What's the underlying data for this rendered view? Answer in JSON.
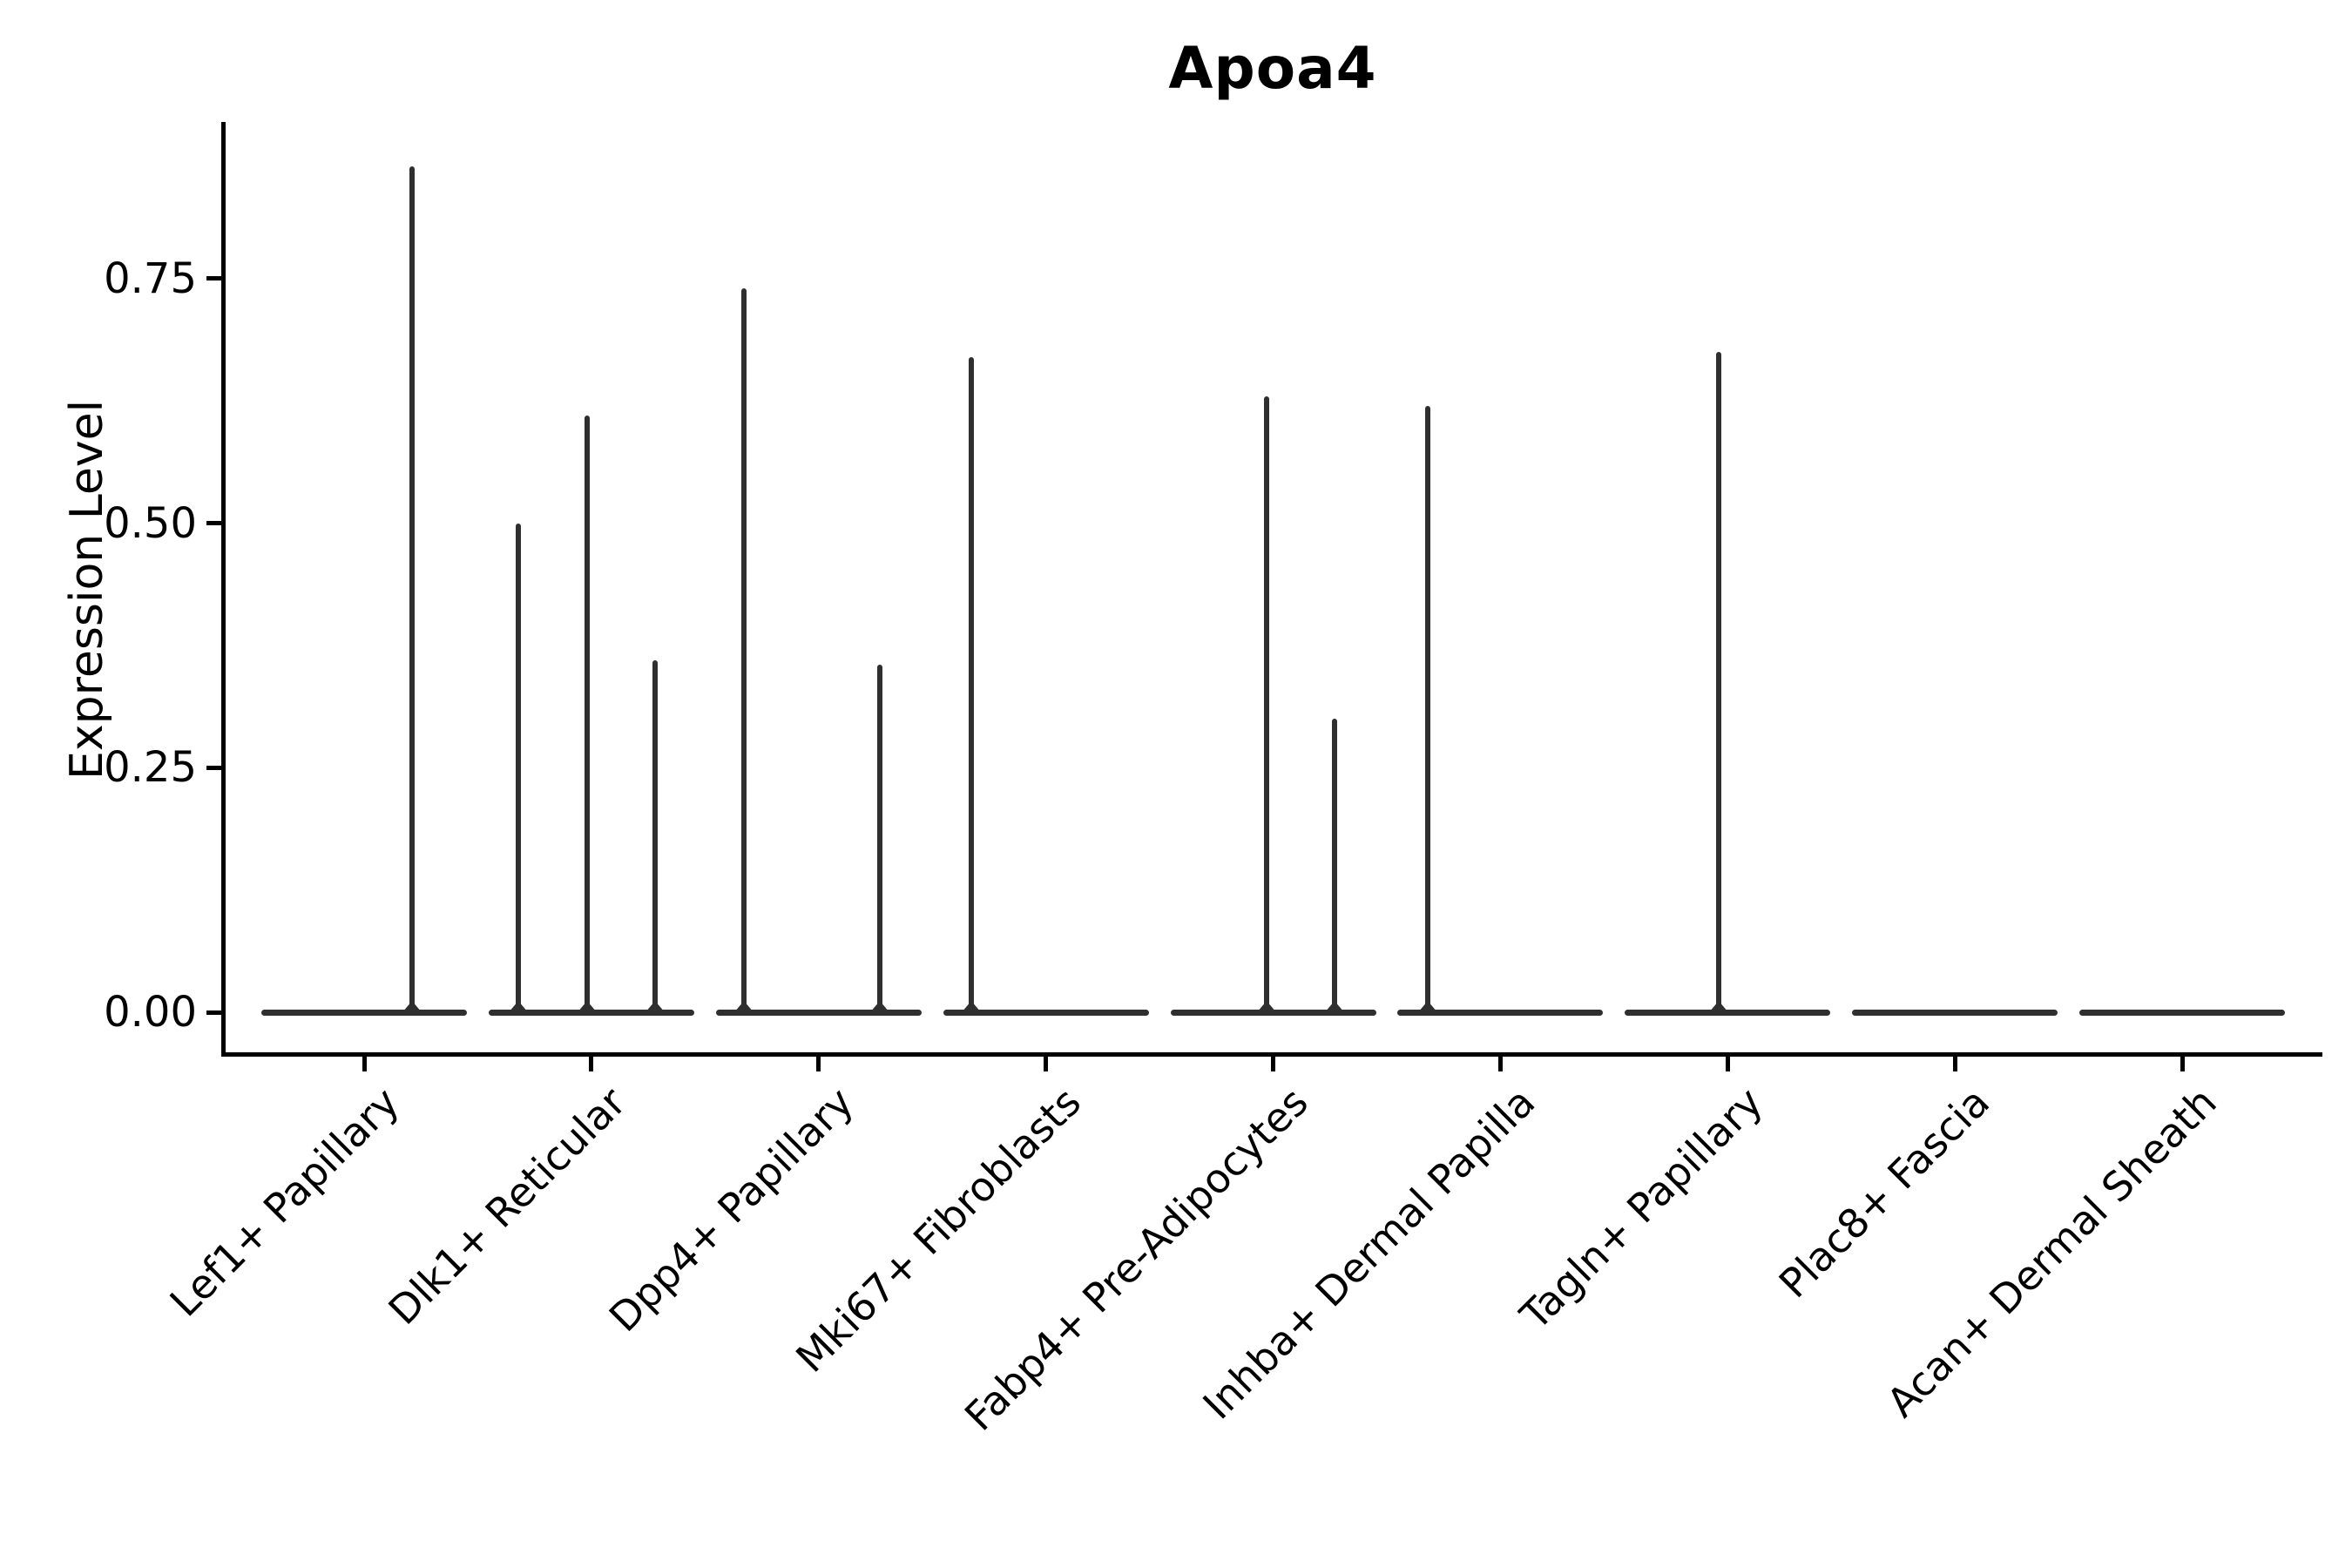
{
  "title": "Apoa4",
  "background_color": "#ffffff",
  "chart_data": {
    "type": "violin",
    "title": "Apoa4",
    "xlabel": "",
    "ylabel": "Expression Level",
    "ylim": [
      0,
      0.906
    ],
    "yticks": [
      0.0,
      0.25,
      0.5,
      0.75
    ],
    "ytick_labels": [
      "0.00",
      "0.25",
      "0.50",
      "0.75"
    ],
    "grid": false,
    "legend_position": "none",
    "axis_color": "#000000",
    "violin_color": "#2f2f2f",
    "categories": [
      "Lef1+ Papillary",
      "Dlk1+ Reticular",
      "Dpp4+ Papillary",
      "Mki67+ Fibroblasts",
      "Fabp4+ Pre-Adipocytes",
      "Inhba+ Dermal Papilla",
      "Tagln+ Papillary",
      "Plac8+ Fascia",
      "Acan+ Dermal Sheath"
    ],
    "violin_body_width_units": 0.9,
    "violins": [
      {
        "category": "Lef1+ Papillary",
        "baseline_value": 0.0,
        "spikes": [
          {
            "offset_units": 0.21,
            "max": 0.865
          }
        ]
      },
      {
        "category": "Dlk1+ Reticular",
        "baseline_value": 0.0,
        "spikes": [
          {
            "offset_units": -0.32,
            "max": 0.5
          },
          {
            "offset_units": -0.02,
            "max": 0.61
          },
          {
            "offset_units": 0.28,
            "max": 0.36
          }
        ]
      },
      {
        "category": "Dpp4+ Papillary",
        "baseline_value": 0.0,
        "spikes": [
          {
            "offset_units": -0.33,
            "max": 0.74
          },
          {
            "offset_units": 0.27,
            "max": 0.355
          }
        ]
      },
      {
        "category": "Mki67+ Fibroblasts",
        "baseline_value": 0.0,
        "spikes": [
          {
            "offset_units": -0.33,
            "max": 0.67
          }
        ]
      },
      {
        "category": "Fabp4+ Pre-Adipocytes",
        "baseline_value": 0.0,
        "spikes": [
          {
            "offset_units": -0.03,
            "max": 0.63
          },
          {
            "offset_units": 0.27,
            "max": 0.3
          }
        ]
      },
      {
        "category": "Inhba+ Dermal Papilla",
        "baseline_value": 0.0,
        "spikes": [
          {
            "offset_units": -0.32,
            "max": 0.62
          }
        ]
      },
      {
        "category": "Tagln+ Papillary",
        "baseline_value": 0.0,
        "spikes": [
          {
            "offset_units": -0.04,
            "max": 0.675
          }
        ]
      },
      {
        "category": "Plac8+ Fascia",
        "baseline_value": 0.0,
        "spikes": []
      },
      {
        "category": "Acan+ Dermal Sheath",
        "baseline_value": 0.0,
        "spikes": []
      }
    ]
  }
}
